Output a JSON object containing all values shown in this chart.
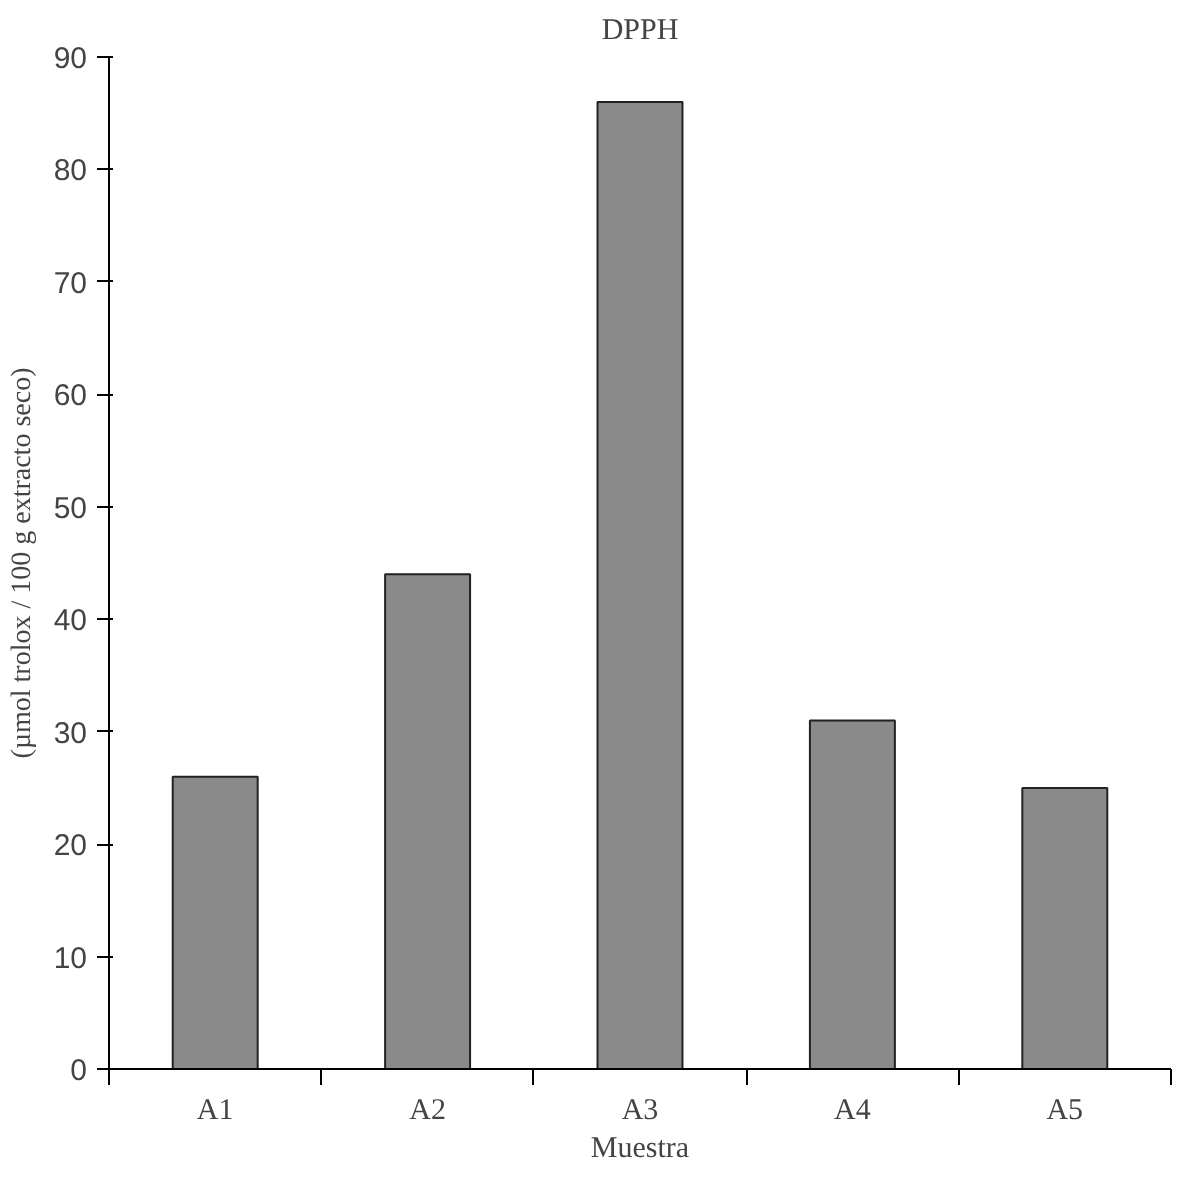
{
  "chart_data": {
    "type": "bar",
    "title": "DPPH",
    "xlabel": "Muestra",
    "ylabel": "(µmol trolox / 100 g extracto seco)",
    "categories": [
      "A1",
      "A2",
      "A3",
      "A4",
      "A5"
    ],
    "values": [
      26,
      44,
      86,
      31,
      25
    ],
    "color": "#8a8a8a",
    "ylim": [
      0,
      90
    ],
    "yticks": [
      0,
      10,
      20,
      30,
      40,
      50,
      60,
      70,
      80,
      90
    ],
    "grid": false
  }
}
